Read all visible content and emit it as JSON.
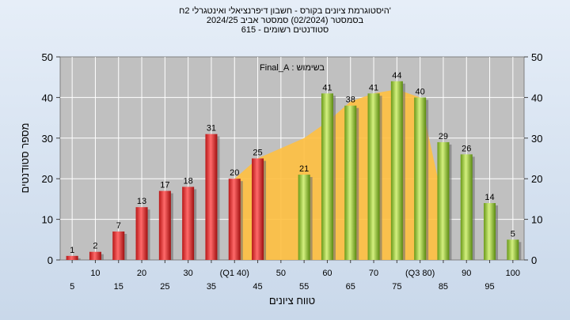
{
  "titles": {
    "line1": "'היסטוגרמת ציונים בקורס - חשבון דיפרנציאלי ואינטגרלי 2ח",
    "line2": "בסמסטר  (02/2024)  סמסטר אביב 2024/25",
    "line3": "סטודנטים רשומים - 615"
  },
  "colors": {
    "low_bar": "#e03030",
    "high_bar": "#90c030",
    "area": "#ffc040",
    "plot_bg": "#c0c0c0",
    "grid": "#ffffff"
  },
  "chart_data": {
    "type": "bar",
    "xlabel": "טווח ציונים",
    "ylabel": "מספר סטודנטים",
    "ylim": [
      0,
      50
    ],
    "yticks": [
      0,
      10,
      20,
      30,
      40,
      50
    ],
    "grid": true,
    "legend_position": "top-center",
    "legend_label": "בשימוש : Final_A",
    "categories": [
      "5",
      "10",
      "15",
      "20",
      "25",
      "30",
      "35",
      "(Q1 40)",
      "45",
      "50",
      "55",
      "60",
      "65",
      "70",
      "75",
      "(Q3 80)",
      "85",
      "90",
      "95",
      "100"
    ],
    "series": [
      {
        "name": "",
        "values": [
          1,
          2,
          7,
          13,
          17,
          18,
          31,
          20,
          25,
          null,
          21,
          41,
          38,
          41,
          44,
          40,
          29,
          26,
          14,
          5
        ]
      }
    ],
    "area_overlay": {
      "x_index": [
        7,
        8,
        10,
        11,
        12,
        13,
        14,
        15,
        16
      ],
      "values": [
        20,
        25,
        30,
        34,
        39,
        41,
        42,
        40,
        14
      ]
    }
  }
}
